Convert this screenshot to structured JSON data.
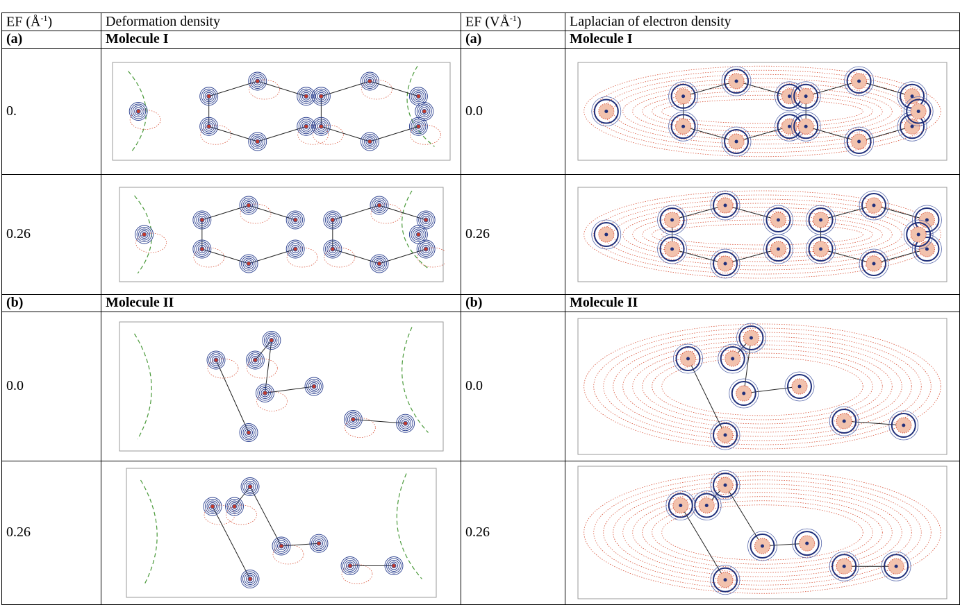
{
  "header": [
    {
      "text": "EF (Å",
      "sup": "-1",
      "after": ")"
    },
    "Deformation density",
    {
      "text": "EF (VÅ",
      "sup": "-1",
      "after": ")"
    },
    "Laplacian of electron density"
  ],
  "sections": [
    {
      "left_label": "(a)",
      "left_title": "Molecule I",
      "right_label": "(a)",
      "right_title": "Molecule I",
      "rows": [
        {
          "left_ef": "0.",
          "right_ef": "0.0"
        },
        {
          "left_ef": "0.26",
          "right_ef": "0.26"
        }
      ]
    },
    {
      "left_label": "(b)",
      "left_title": "Molecule II",
      "right_label": "(b)",
      "right_title": "Molecule II",
      "rows": [
        {
          "left_ef": "0.0",
          "right_ef": "0.0"
        },
        {
          "left_ef": "0.26",
          "right_ef": "0.26"
        }
      ]
    }
  ]
}
